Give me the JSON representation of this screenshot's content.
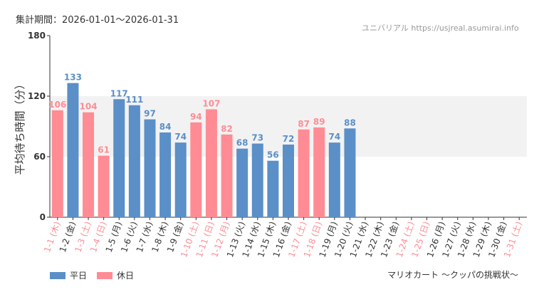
{
  "header": {
    "period_text": "集計期間：2026-01-01～2026-01-31",
    "site_text": "ユニバリアル  https://usjreal.asumirai.info"
  },
  "footer": {
    "attraction": "マリオカート ～クッパの挑戦状～"
  },
  "colors": {
    "weekday": "#5b8fc7",
    "holiday": "#ff8c94",
    "axis_text": "#333333",
    "band": "#f2f2f2"
  },
  "chart_data": {
    "type": "bar",
    "ylabel": "平均待ち時間（分）",
    "ylim": [
      0,
      180
    ],
    "yticks": [
      "0",
      "60",
      "120",
      "180"
    ],
    "band_range": [
      60,
      120
    ],
    "legend": [
      "平日",
      "休日"
    ],
    "categories": [
      "1-1 (木)",
      "1-2 (金)",
      "1-3 (土)",
      "1-4 (日)",
      "1-5 (月)",
      "1-6 (火)",
      "1-7 (水)",
      "1-8 (木)",
      "1-9 (金)",
      "1-10 (土)",
      "1-11 (日)",
      "1-12 (月)",
      "1-13 (火)",
      "1-14 (水)",
      "1-15 (木)",
      "1-16 (金)",
      "1-17 (土)",
      "1-18 (日)",
      "1-19 (月)",
      "1-20 (火)",
      "1-21 (水)",
      "1-22 (木)",
      "1-23 (金)",
      "1-24 (土)",
      "1-25 (日)",
      "1-26 (月)",
      "1-27 (火)",
      "1-28 (水)",
      "1-29 (木)",
      "1-30 (金)",
      "1-31 (土)"
    ],
    "values": [
      106,
      133,
      104,
      61,
      117,
      111,
      97,
      84,
      74,
      94,
      107,
      82,
      68,
      73,
      56,
      72,
      87,
      89,
      74,
      88,
      null,
      null,
      null,
      null,
      null,
      null,
      null,
      null,
      null,
      null,
      null
    ],
    "holiday": [
      true,
      false,
      true,
      true,
      false,
      false,
      false,
      false,
      false,
      true,
      true,
      true,
      false,
      false,
      false,
      false,
      true,
      true,
      false,
      false,
      false,
      false,
      false,
      true,
      true,
      false,
      false,
      false,
      false,
      false,
      true
    ]
  }
}
